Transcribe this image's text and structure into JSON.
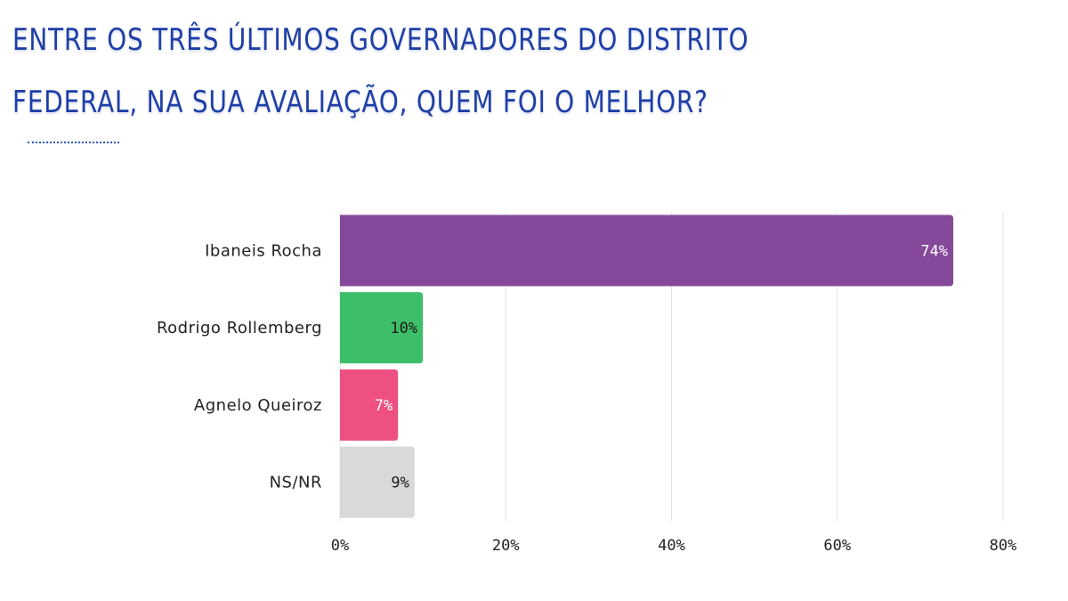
{
  "chart_data": {
    "type": "bar",
    "orientation": "horizontal",
    "title": "ENTRE OS TRÊS ÚLTIMOS GOVERNADORES DO DISTRITO FEDERAL, NA SUA AVALIAÇÃO, QUEM FOI O MELHOR?",
    "categories": [
      "Ibaneis Rocha",
      "Rodrigo Rollemberg",
      "Agnelo Queiroz",
      "NS/NR"
    ],
    "values": [
      74,
      10,
      7,
      9
    ],
    "data_labels": [
      "74%",
      "10%",
      "7%",
      "9%"
    ],
    "colors": [
      "#86489b",
      "#3dbf69",
      "#ee5082",
      "#d9d9d9"
    ],
    "label_colors": [
      "#ffffff",
      "#1a1a1a",
      "#ffffff",
      "#1a1a1a"
    ],
    "xlim": [
      0,
      80
    ],
    "xticks": [
      0,
      20,
      40,
      60,
      80
    ],
    "xtick_labels": [
      "0%",
      "20%",
      "40%",
      "60%",
      "80%"
    ],
    "grid": true,
    "legend": "none"
  }
}
